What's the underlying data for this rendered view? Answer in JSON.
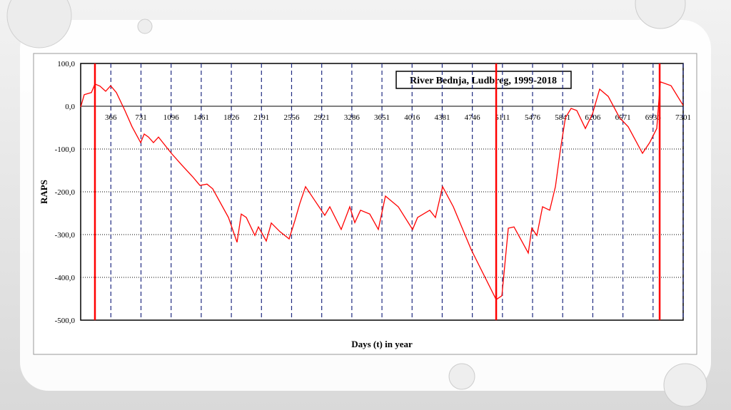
{
  "chart_data": {
    "type": "line",
    "title": "River Bednja, Ludbreg, 1999-2018",
    "y_label": "RAPS",
    "x_label": "Days (t) in year",
    "xlim": [
      0,
      7301
    ],
    "ylim": [
      -500,
      100
    ],
    "xticks": [
      366,
      731,
      1096,
      1461,
      1826,
      2191,
      2556,
      2921,
      3286,
      3651,
      4016,
      4381,
      4746,
      5111,
      5476,
      5841,
      6206,
      6571,
      6936,
      7301
    ],
    "yticks": [
      {
        "value": 100,
        "label": "100,0"
      },
      {
        "value": 0,
        "label": "0,0"
      },
      {
        "value": -100,
        "label": "-100,0"
      },
      {
        "value": -200,
        "label": "-200,0"
      },
      {
        "value": -300,
        "label": "-300,0"
      },
      {
        "value": -400,
        "label": "-400,0"
      },
      {
        "value": -500,
        "label": "-500,0"
      }
    ],
    "change_points": [
      173,
      5035,
      7016
    ],
    "grid": true,
    "series": [
      {
        "color": "#ff0000",
        "x": [
          0,
          43,
          130,
          173,
          234,
          303,
          363,
          433,
          536,
          623,
          727,
          770,
          822,
          882,
          943,
          1099,
          1228,
          1358,
          1445,
          1531,
          1600,
          1791,
          1895,
          1946,
          2007,
          2111,
          2154,
          2249,
          2310,
          2414,
          2526,
          2595,
          2656,
          2725,
          2829,
          2958,
          3019,
          3157,
          3261,
          3322,
          3391,
          3503,
          3607,
          3693,
          3849,
          4022,
          4083,
          4230,
          4299,
          4386,
          4516,
          4732,
          5035,
          5104,
          5182,
          5251,
          5424,
          5467,
          5528,
          5597,
          5684,
          5753,
          5813,
          5874,
          5943,
          6012,
          6116,
          6202,
          6289,
          6393,
          6531,
          6635,
          6808,
          6895,
          6981,
          7024,
          7154,
          7301
        ],
        "values": [
          -2,
          27,
          32,
          52,
          47,
          35,
          48,
          32,
          -10,
          -48,
          -85,
          -65,
          -72,
          -85,
          -72,
          -110,
          -138,
          -165,
          -185,
          -182,
          -193,
          -260,
          -318,
          -252,
          -260,
          -302,
          -282,
          -315,
          -273,
          -293,
          -310,
          -268,
          -227,
          -188,
          -218,
          -255,
          -235,
          -288,
          -235,
          -272,
          -243,
          -252,
          -288,
          -210,
          -235,
          -288,
          -260,
          -243,
          -260,
          -188,
          -235,
          -335,
          -452,
          -443,
          -285,
          -282,
          -343,
          -285,
          -302,
          -235,
          -243,
          -188,
          -102,
          -27,
          -5,
          -10,
          -52,
          -18,
          40,
          23,
          -27,
          -48,
          -110,
          -85,
          -52,
          57,
          48,
          2
        ]
      }
    ]
  }
}
